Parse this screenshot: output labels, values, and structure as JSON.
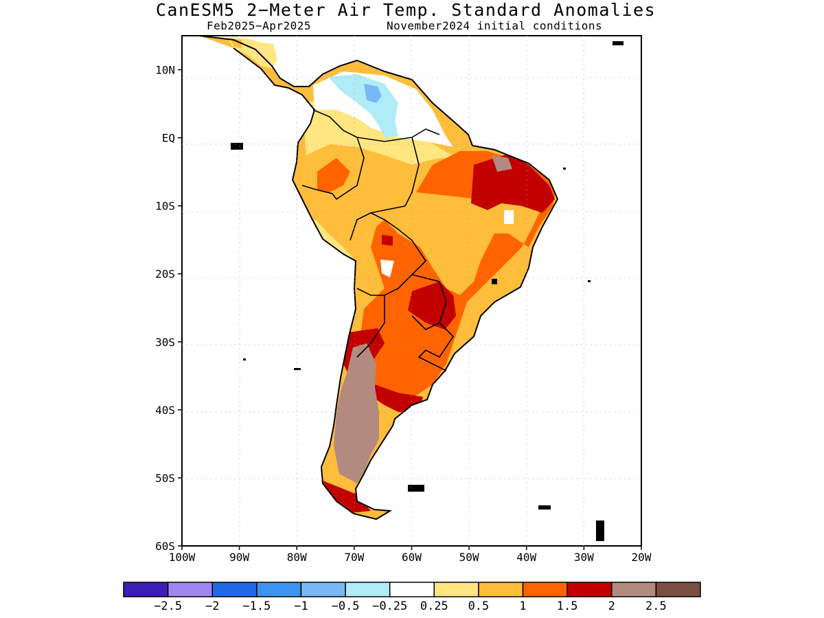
{
  "title": "CanESM5 2−Meter Air Temp. Standard Anomalies",
  "subtitle_left": "Feb2025−Apr2025",
  "subtitle_right": "November2024 initial conditions",
  "map": {
    "lon_range": [
      -100,
      -20
    ],
    "lat_range": [
      -60,
      15
    ],
    "lon_ticks": [
      {
        "value": -100,
        "label": "100W"
      },
      {
        "value": -90,
        "label": "90W"
      },
      {
        "value": -80,
        "label": "80W"
      },
      {
        "value": -70,
        "label": "70W"
      },
      {
        "value": -60,
        "label": "60W"
      },
      {
        "value": -50,
        "label": "50W"
      },
      {
        "value": -40,
        "label": "40W"
      },
      {
        "value": -30,
        "label": "30W"
      },
      {
        "value": -20,
        "label": "20W"
      }
    ],
    "lat_ticks": [
      {
        "value": 10,
        "label": "10N"
      },
      {
        "value": 0,
        "label": "EQ"
      },
      {
        "value": -10,
        "label": "10S"
      },
      {
        "value": -20,
        "label": "20S"
      },
      {
        "value": -30,
        "label": "30S"
      },
      {
        "value": -40,
        "label": "40S"
      },
      {
        "value": -50,
        "label": "50S"
      },
      {
        "value": -60,
        "label": "60S"
      }
    ],
    "gridlines": true
  },
  "colorbar": {
    "colors": [
      "#3b1fb5",
      "#9e86f5",
      "#1f68e6",
      "#3d94f0",
      "#78b8f5",
      "#b0ecf8",
      "#ffffff",
      "#ffe680",
      "#ffbd3c",
      "#ff6400",
      "#c20000",
      "#b38a80",
      "#7a4e40"
    ],
    "labels": [
      "−2.5",
      "−2",
      "−1.5",
      "−1",
      "−0.5",
      "−0.25",
      "0.25",
      "0.5",
      "1",
      "1.5",
      "2",
      "2.5"
    ]
  }
}
